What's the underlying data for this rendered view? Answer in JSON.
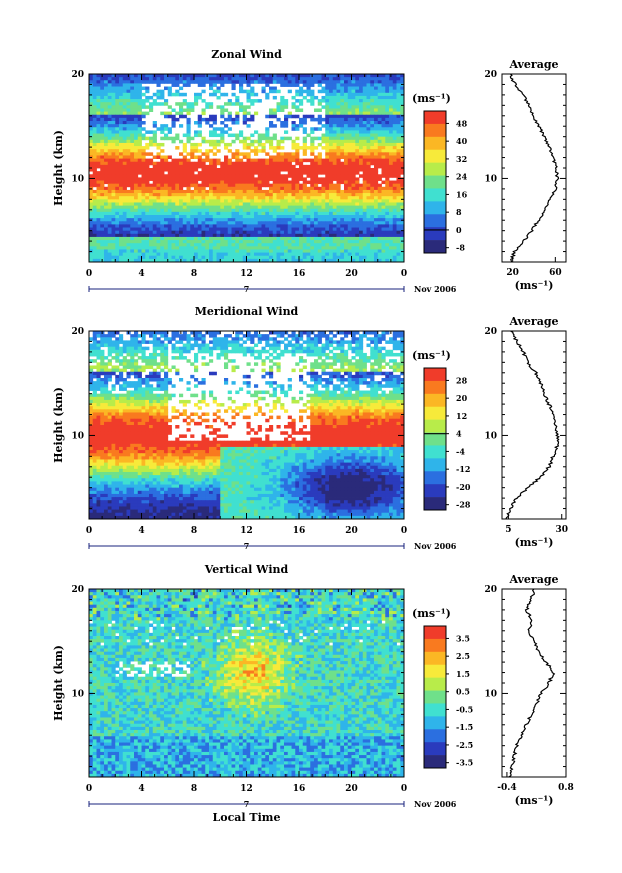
{
  "chart_data": [
    {
      "type": "heatmap",
      "title": "Zonal Wind",
      "ylabel": "Height (km)",
      "ylim": [
        2,
        20
      ],
      "xlim": [
        0,
        24
      ],
      "x_ticks": [
        "0",
        "4",
        "8",
        "12",
        "16",
        "20",
        "0"
      ],
      "y_ticks": [
        "10",
        "20"
      ],
      "date_label": "7",
      "date_suffix": "Nov 2006",
      "colorbar": {
        "unit": "(ms⁻¹)",
        "levels": [
          "48",
          "40",
          "32",
          "24",
          "16",
          "8",
          "0",
          "-8"
        ],
        "colors": [
          "#f03c2a",
          "#f97a1f",
          "#fbb724",
          "#f7ea3a",
          "#b8ec4a",
          "#6fe08a",
          "#40e0d0",
          "#2fb4ea",
          "#2b6fe0",
          "#2a3bbd",
          "#2a2a7a"
        ],
        "zero_line_index": 6
      },
      "average": {
        "title": "Average",
        "xlabel": "(ms⁻¹)",
        "x_ticks": [
          "20",
          "60"
        ],
        "y_ticks": [
          "10",
          "20"
        ],
        "xlim": [
          10,
          70
        ],
        "profile_height_km": [
          2,
          3,
          4,
          5,
          6,
          7,
          8,
          9,
          10,
          11,
          12,
          13,
          14,
          15,
          16,
          17,
          18,
          19,
          20
        ],
        "profile_value": [
          18,
          22,
          30,
          38,
          44,
          50,
          55,
          60,
          62,
          61,
          58,
          54,
          50,
          44,
          40,
          35,
          30,
          22,
          18
        ]
      }
    },
    {
      "type": "heatmap",
      "title": "Meridional Wind",
      "ylabel": "Height (km)",
      "ylim": [
        2,
        20
      ],
      "xlim": [
        0,
        24
      ],
      "x_ticks": [
        "0",
        "4",
        "8",
        "12",
        "16",
        "20",
        "0"
      ],
      "y_ticks": [
        "10",
        "20"
      ],
      "date_label": "7",
      "date_suffix": "Nov 2006",
      "colorbar": {
        "unit": "(ms⁻¹)",
        "levels": [
          "28",
          "20",
          "12",
          "4",
          "-4",
          "-12",
          "-20",
          "-28"
        ],
        "colors": [
          "#f03c2a",
          "#f97a1f",
          "#fbb724",
          "#f7ea3a",
          "#b8ec4a",
          "#6fe08a",
          "#40e0d0",
          "#2fb4ea",
          "#2b6fe0",
          "#2a3bbd",
          "#2a2a7a"
        ],
        "zero_line_index": 3
      },
      "average": {
        "title": "Average",
        "xlabel": "(ms⁻¹)",
        "x_ticks": [
          "5",
          "30"
        ],
        "y_ticks": [
          "10",
          "20"
        ],
        "xlim": [
          2,
          32
        ],
        "profile_height_km": [
          2,
          3,
          4,
          5,
          6,
          7,
          8,
          9,
          10,
          11,
          12,
          13,
          14,
          15,
          16,
          17,
          18,
          19,
          20
        ],
        "profile_value": [
          4,
          6,
          9,
          14,
          20,
          24,
          26,
          28,
          28,
          27,
          26,
          24,
          22,
          20,
          18,
          14,
          12,
          9,
          6
        ]
      }
    },
    {
      "type": "heatmap",
      "title": "Vertical Wind",
      "xlabel": "Local Time",
      "ylabel": "Height (km)",
      "ylim": [
        2,
        20
      ],
      "xlim": [
        0,
        24
      ],
      "x_ticks": [
        "0",
        "4",
        "8",
        "12",
        "16",
        "20",
        "0"
      ],
      "y_ticks": [
        "10",
        "20"
      ],
      "date_label": "7",
      "date_suffix": "Nov 2006",
      "colorbar": {
        "unit": "(ms⁻¹)",
        "levels": [
          "3.5",
          "2.5",
          "1.5",
          "0.5",
          "-0.5",
          "-1.5",
          "-2.5",
          "-3.5"
        ],
        "colors": [
          "#f03c2a",
          "#f97a1f",
          "#fbb724",
          "#f7ea3a",
          "#b8ec4a",
          "#6fe08a",
          "#40e0d0",
          "#2fb4ea",
          "#2b6fe0",
          "#2a3bbd",
          "#2a2a7a"
        ],
        "zero_line_index": -1
      },
      "average": {
        "title": "Average",
        "xlabel": "(ms⁻¹)",
        "x_ticks": [
          "-0.4",
          "0.8"
        ],
        "y_ticks": [
          "10",
          "20"
        ],
        "xlim": [
          -0.5,
          0.8
        ],
        "profile_height_km": [
          2,
          3,
          4,
          5,
          6,
          7,
          8,
          9,
          10,
          11,
          12,
          13,
          14,
          15,
          16,
          17,
          18,
          19,
          20
        ],
        "profile_value": [
          -0.35,
          -0.3,
          -0.25,
          -0.2,
          -0.1,
          0.0,
          0.1,
          0.2,
          0.3,
          0.45,
          0.55,
          0.4,
          0.25,
          0.15,
          0.05,
          0.1,
          0.0,
          0.1,
          0.15
        ]
      }
    }
  ]
}
